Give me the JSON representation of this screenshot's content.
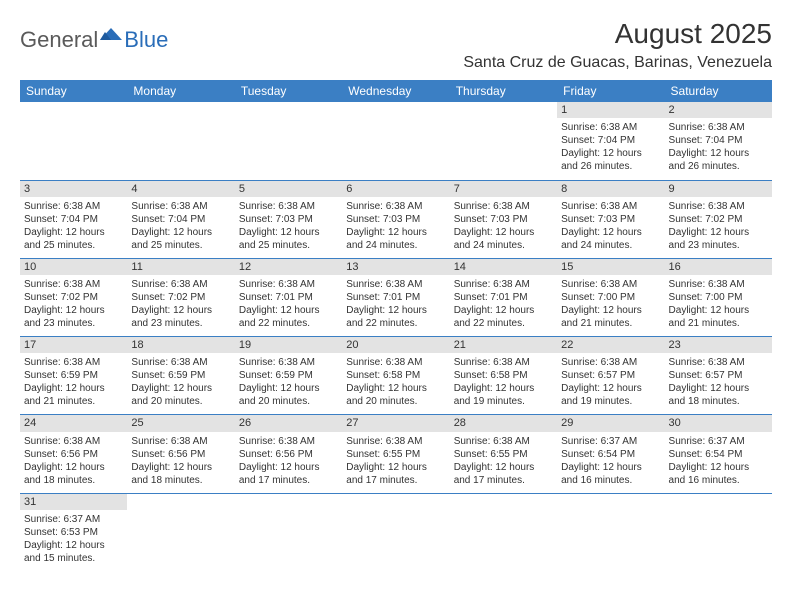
{
  "logo": {
    "part1": "General",
    "part2": "Blue"
  },
  "title": "August 2025",
  "location": "Santa Cruz de Guacas, Barinas, Venezuela",
  "colors": {
    "header_bg": "#3b7fc4",
    "header_text": "#ffffff",
    "daynum_bg": "#e3e3e3",
    "border": "#3b7fc4",
    "text": "#333333",
    "logo_gray": "#5a5a5a",
    "logo_blue": "#2a6db8"
  },
  "day_headers": [
    "Sunday",
    "Monday",
    "Tuesday",
    "Wednesday",
    "Thursday",
    "Friday",
    "Saturday"
  ],
  "weeks": [
    [
      null,
      null,
      null,
      null,
      null,
      {
        "n": "1",
        "sr": "Sunrise: 6:38 AM",
        "ss": "Sunset: 7:04 PM",
        "d1": "Daylight: 12 hours",
        "d2": "and 26 minutes."
      },
      {
        "n": "2",
        "sr": "Sunrise: 6:38 AM",
        "ss": "Sunset: 7:04 PM",
        "d1": "Daylight: 12 hours",
        "d2": "and 26 minutes."
      }
    ],
    [
      {
        "n": "3",
        "sr": "Sunrise: 6:38 AM",
        "ss": "Sunset: 7:04 PM",
        "d1": "Daylight: 12 hours",
        "d2": "and 25 minutes."
      },
      {
        "n": "4",
        "sr": "Sunrise: 6:38 AM",
        "ss": "Sunset: 7:04 PM",
        "d1": "Daylight: 12 hours",
        "d2": "and 25 minutes."
      },
      {
        "n": "5",
        "sr": "Sunrise: 6:38 AM",
        "ss": "Sunset: 7:03 PM",
        "d1": "Daylight: 12 hours",
        "d2": "and 25 minutes."
      },
      {
        "n": "6",
        "sr": "Sunrise: 6:38 AM",
        "ss": "Sunset: 7:03 PM",
        "d1": "Daylight: 12 hours",
        "d2": "and 24 minutes."
      },
      {
        "n": "7",
        "sr": "Sunrise: 6:38 AM",
        "ss": "Sunset: 7:03 PM",
        "d1": "Daylight: 12 hours",
        "d2": "and 24 minutes."
      },
      {
        "n": "8",
        "sr": "Sunrise: 6:38 AM",
        "ss": "Sunset: 7:03 PM",
        "d1": "Daylight: 12 hours",
        "d2": "and 24 minutes."
      },
      {
        "n": "9",
        "sr": "Sunrise: 6:38 AM",
        "ss": "Sunset: 7:02 PM",
        "d1": "Daylight: 12 hours",
        "d2": "and 23 minutes."
      }
    ],
    [
      {
        "n": "10",
        "sr": "Sunrise: 6:38 AM",
        "ss": "Sunset: 7:02 PM",
        "d1": "Daylight: 12 hours",
        "d2": "and 23 minutes."
      },
      {
        "n": "11",
        "sr": "Sunrise: 6:38 AM",
        "ss": "Sunset: 7:02 PM",
        "d1": "Daylight: 12 hours",
        "d2": "and 23 minutes."
      },
      {
        "n": "12",
        "sr": "Sunrise: 6:38 AM",
        "ss": "Sunset: 7:01 PM",
        "d1": "Daylight: 12 hours",
        "d2": "and 22 minutes."
      },
      {
        "n": "13",
        "sr": "Sunrise: 6:38 AM",
        "ss": "Sunset: 7:01 PM",
        "d1": "Daylight: 12 hours",
        "d2": "and 22 minutes."
      },
      {
        "n": "14",
        "sr": "Sunrise: 6:38 AM",
        "ss": "Sunset: 7:01 PM",
        "d1": "Daylight: 12 hours",
        "d2": "and 22 minutes."
      },
      {
        "n": "15",
        "sr": "Sunrise: 6:38 AM",
        "ss": "Sunset: 7:00 PM",
        "d1": "Daylight: 12 hours",
        "d2": "and 21 minutes."
      },
      {
        "n": "16",
        "sr": "Sunrise: 6:38 AM",
        "ss": "Sunset: 7:00 PM",
        "d1": "Daylight: 12 hours",
        "d2": "and 21 minutes."
      }
    ],
    [
      {
        "n": "17",
        "sr": "Sunrise: 6:38 AM",
        "ss": "Sunset: 6:59 PM",
        "d1": "Daylight: 12 hours",
        "d2": "and 21 minutes."
      },
      {
        "n": "18",
        "sr": "Sunrise: 6:38 AM",
        "ss": "Sunset: 6:59 PM",
        "d1": "Daylight: 12 hours",
        "d2": "and 20 minutes."
      },
      {
        "n": "19",
        "sr": "Sunrise: 6:38 AM",
        "ss": "Sunset: 6:59 PM",
        "d1": "Daylight: 12 hours",
        "d2": "and 20 minutes."
      },
      {
        "n": "20",
        "sr": "Sunrise: 6:38 AM",
        "ss": "Sunset: 6:58 PM",
        "d1": "Daylight: 12 hours",
        "d2": "and 20 minutes."
      },
      {
        "n": "21",
        "sr": "Sunrise: 6:38 AM",
        "ss": "Sunset: 6:58 PM",
        "d1": "Daylight: 12 hours",
        "d2": "and 19 minutes."
      },
      {
        "n": "22",
        "sr": "Sunrise: 6:38 AM",
        "ss": "Sunset: 6:57 PM",
        "d1": "Daylight: 12 hours",
        "d2": "and 19 minutes."
      },
      {
        "n": "23",
        "sr": "Sunrise: 6:38 AM",
        "ss": "Sunset: 6:57 PM",
        "d1": "Daylight: 12 hours",
        "d2": "and 18 minutes."
      }
    ],
    [
      {
        "n": "24",
        "sr": "Sunrise: 6:38 AM",
        "ss": "Sunset: 6:56 PM",
        "d1": "Daylight: 12 hours",
        "d2": "and 18 minutes."
      },
      {
        "n": "25",
        "sr": "Sunrise: 6:38 AM",
        "ss": "Sunset: 6:56 PM",
        "d1": "Daylight: 12 hours",
        "d2": "and 18 minutes."
      },
      {
        "n": "26",
        "sr": "Sunrise: 6:38 AM",
        "ss": "Sunset: 6:56 PM",
        "d1": "Daylight: 12 hours",
        "d2": "and 17 minutes."
      },
      {
        "n": "27",
        "sr": "Sunrise: 6:38 AM",
        "ss": "Sunset: 6:55 PM",
        "d1": "Daylight: 12 hours",
        "d2": "and 17 minutes."
      },
      {
        "n": "28",
        "sr": "Sunrise: 6:38 AM",
        "ss": "Sunset: 6:55 PM",
        "d1": "Daylight: 12 hours",
        "d2": "and 17 minutes."
      },
      {
        "n": "29",
        "sr": "Sunrise: 6:37 AM",
        "ss": "Sunset: 6:54 PM",
        "d1": "Daylight: 12 hours",
        "d2": "and 16 minutes."
      },
      {
        "n": "30",
        "sr": "Sunrise: 6:37 AM",
        "ss": "Sunset: 6:54 PM",
        "d1": "Daylight: 12 hours",
        "d2": "and 16 minutes."
      }
    ],
    [
      {
        "n": "31",
        "sr": "Sunrise: 6:37 AM",
        "ss": "Sunset: 6:53 PM",
        "d1": "Daylight: 12 hours",
        "d2": "and 15 minutes."
      },
      null,
      null,
      null,
      null,
      null,
      null
    ]
  ]
}
